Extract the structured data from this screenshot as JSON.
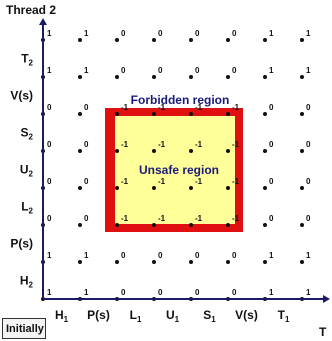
{
  "title": "Thread 2",
  "x_axis_end_label": "T",
  "initially_label": "Initially",
  "forbidden_label": "Forbidden region",
  "unsafe_label": "Unsafe region",
  "x_labels": [
    {
      "main": "H",
      "sub": "1"
    },
    {
      "main": "P(s)",
      "sub": ""
    },
    {
      "main": "L",
      "sub": "1"
    },
    {
      "main": "U",
      "sub": "1"
    },
    {
      "main": "S",
      "sub": "1"
    },
    {
      "main": "V(s)",
      "sub": ""
    },
    {
      "main": "T",
      "sub": "1"
    }
  ],
  "y_labels": [
    {
      "main": "H",
      "sub": "2"
    },
    {
      "main": "P(s)",
      "sub": ""
    },
    {
      "main": "L",
      "sub": "2"
    },
    {
      "main": "U",
      "sub": "2"
    },
    {
      "main": "S",
      "sub": "2"
    },
    {
      "main": "V(s)",
      "sub": ""
    },
    {
      "main": "T",
      "sub": "2"
    }
  ],
  "grid_values": [
    [
      "1",
      "1",
      "0",
      "0",
      "0",
      "0",
      "1",
      "1"
    ],
    [
      "1",
      "1",
      "0",
      "0",
      "0",
      "0",
      "1",
      "1"
    ],
    [
      "0",
      "0",
      "-1",
      "-1",
      "-1",
      "-1",
      "0",
      "0"
    ],
    [
      "0",
      "0",
      "-1",
      "-1",
      "-1",
      "-1",
      "0",
      "0"
    ],
    [
      "0",
      "0",
      "-1",
      "-1",
      "-1",
      "-1",
      "0",
      "0"
    ],
    [
      "0",
      "0",
      "-1",
      "-1",
      "-1",
      "-1",
      "0",
      "0"
    ],
    [
      "1",
      "1",
      "0",
      "0",
      "0",
      "0",
      "1",
      "1"
    ],
    [
      "1",
      "1",
      "0",
      "0",
      "0",
      "0",
      "1",
      "1"
    ]
  ],
  "colors": {
    "forbidden_fill": "#e01010",
    "unsafe_fill": "#ffff99",
    "forbidden_text": "#1a1a7a",
    "dot": "#111111",
    "axis": "#1a1a66"
  }
}
